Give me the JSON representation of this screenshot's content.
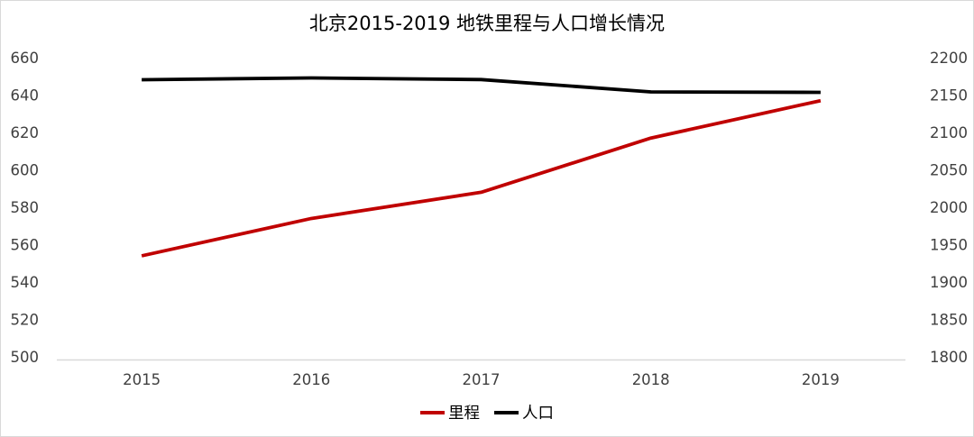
{
  "chart_data": {
    "type": "line",
    "title": "北京2015-2019 地铁里程与人口增长情况",
    "categories": [
      "2015",
      "2016",
      "2017",
      "2018",
      "2019"
    ],
    "series": [
      {
        "key": "mileage",
        "name": "里程",
        "axis": "left",
        "color": "#C00000",
        "values": [
          554,
          574,
          588,
          617,
          637
        ]
      },
      {
        "key": "population",
        "name": "人口",
        "axis": "right",
        "color": "#000000",
        "values": [
          2170.5,
          2172.9,
          2170.7,
          2154.2,
          2153.6
        ]
      }
    ],
    "left_axis": {
      "min": 500,
      "max": 660,
      "ticks": [
        660,
        640,
        620,
        600,
        580,
        560,
        540,
        520,
        500
      ]
    },
    "right_axis": {
      "min": 1800,
      "max": 2200,
      "ticks": [
        2200,
        2150,
        2100,
        2050,
        2000,
        1950,
        1900,
        1850,
        1800
      ]
    },
    "xlabel": "",
    "ylabel": "",
    "grid": false,
    "legend_position": "bottom",
    "axis_line_color": "#d9d9d9",
    "tick_color": "#404040",
    "title_color": "#000000"
  }
}
